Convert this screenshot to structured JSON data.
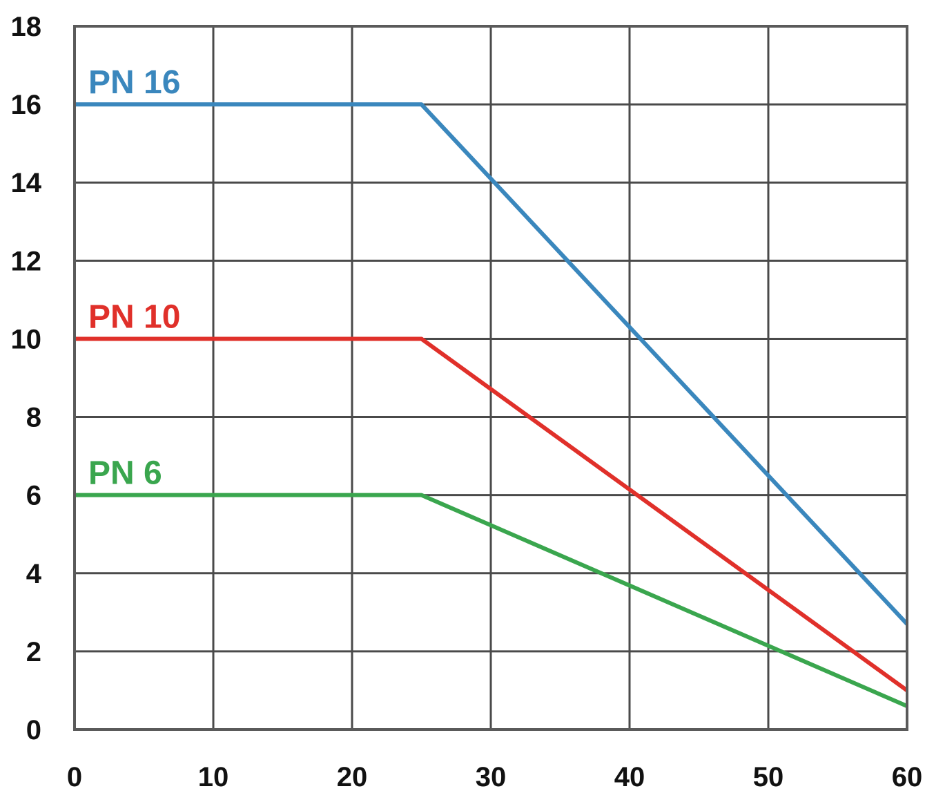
{
  "chart_data": {
    "type": "line",
    "title": "",
    "xlabel": "",
    "ylabel": "",
    "xlim": [
      0,
      60
    ],
    "ylim": [
      0,
      18
    ],
    "x_ticks": [
      0,
      10,
      20,
      30,
      40,
      50,
      60
    ],
    "y_ticks": [
      0,
      2,
      4,
      6,
      8,
      10,
      12,
      14,
      16,
      18
    ],
    "x_tick_labels": [
      "0",
      "10",
      "20",
      "30",
      "40",
      "50",
      "60"
    ],
    "y_tick_labels": [
      "0",
      "2",
      "4",
      "6",
      "8",
      "10",
      "12",
      "14",
      "16",
      "18"
    ],
    "grid": true,
    "legend": "inline labels above each line at left",
    "series": [
      {
        "name": "PN 16",
        "color": "#3a87bd",
        "points": [
          [
            0,
            16
          ],
          [
            25,
            16
          ],
          [
            60,
            2.7
          ]
        ]
      },
      {
        "name": "PN 10",
        "color": "#e0302a",
        "points": [
          [
            0,
            10
          ],
          [
            25,
            10
          ],
          [
            60,
            1.0
          ]
        ]
      },
      {
        "name": "PN 6",
        "color": "#3aa64e",
        "points": [
          [
            0,
            6
          ],
          [
            25,
            6
          ],
          [
            60,
            0.6
          ]
        ]
      }
    ]
  }
}
